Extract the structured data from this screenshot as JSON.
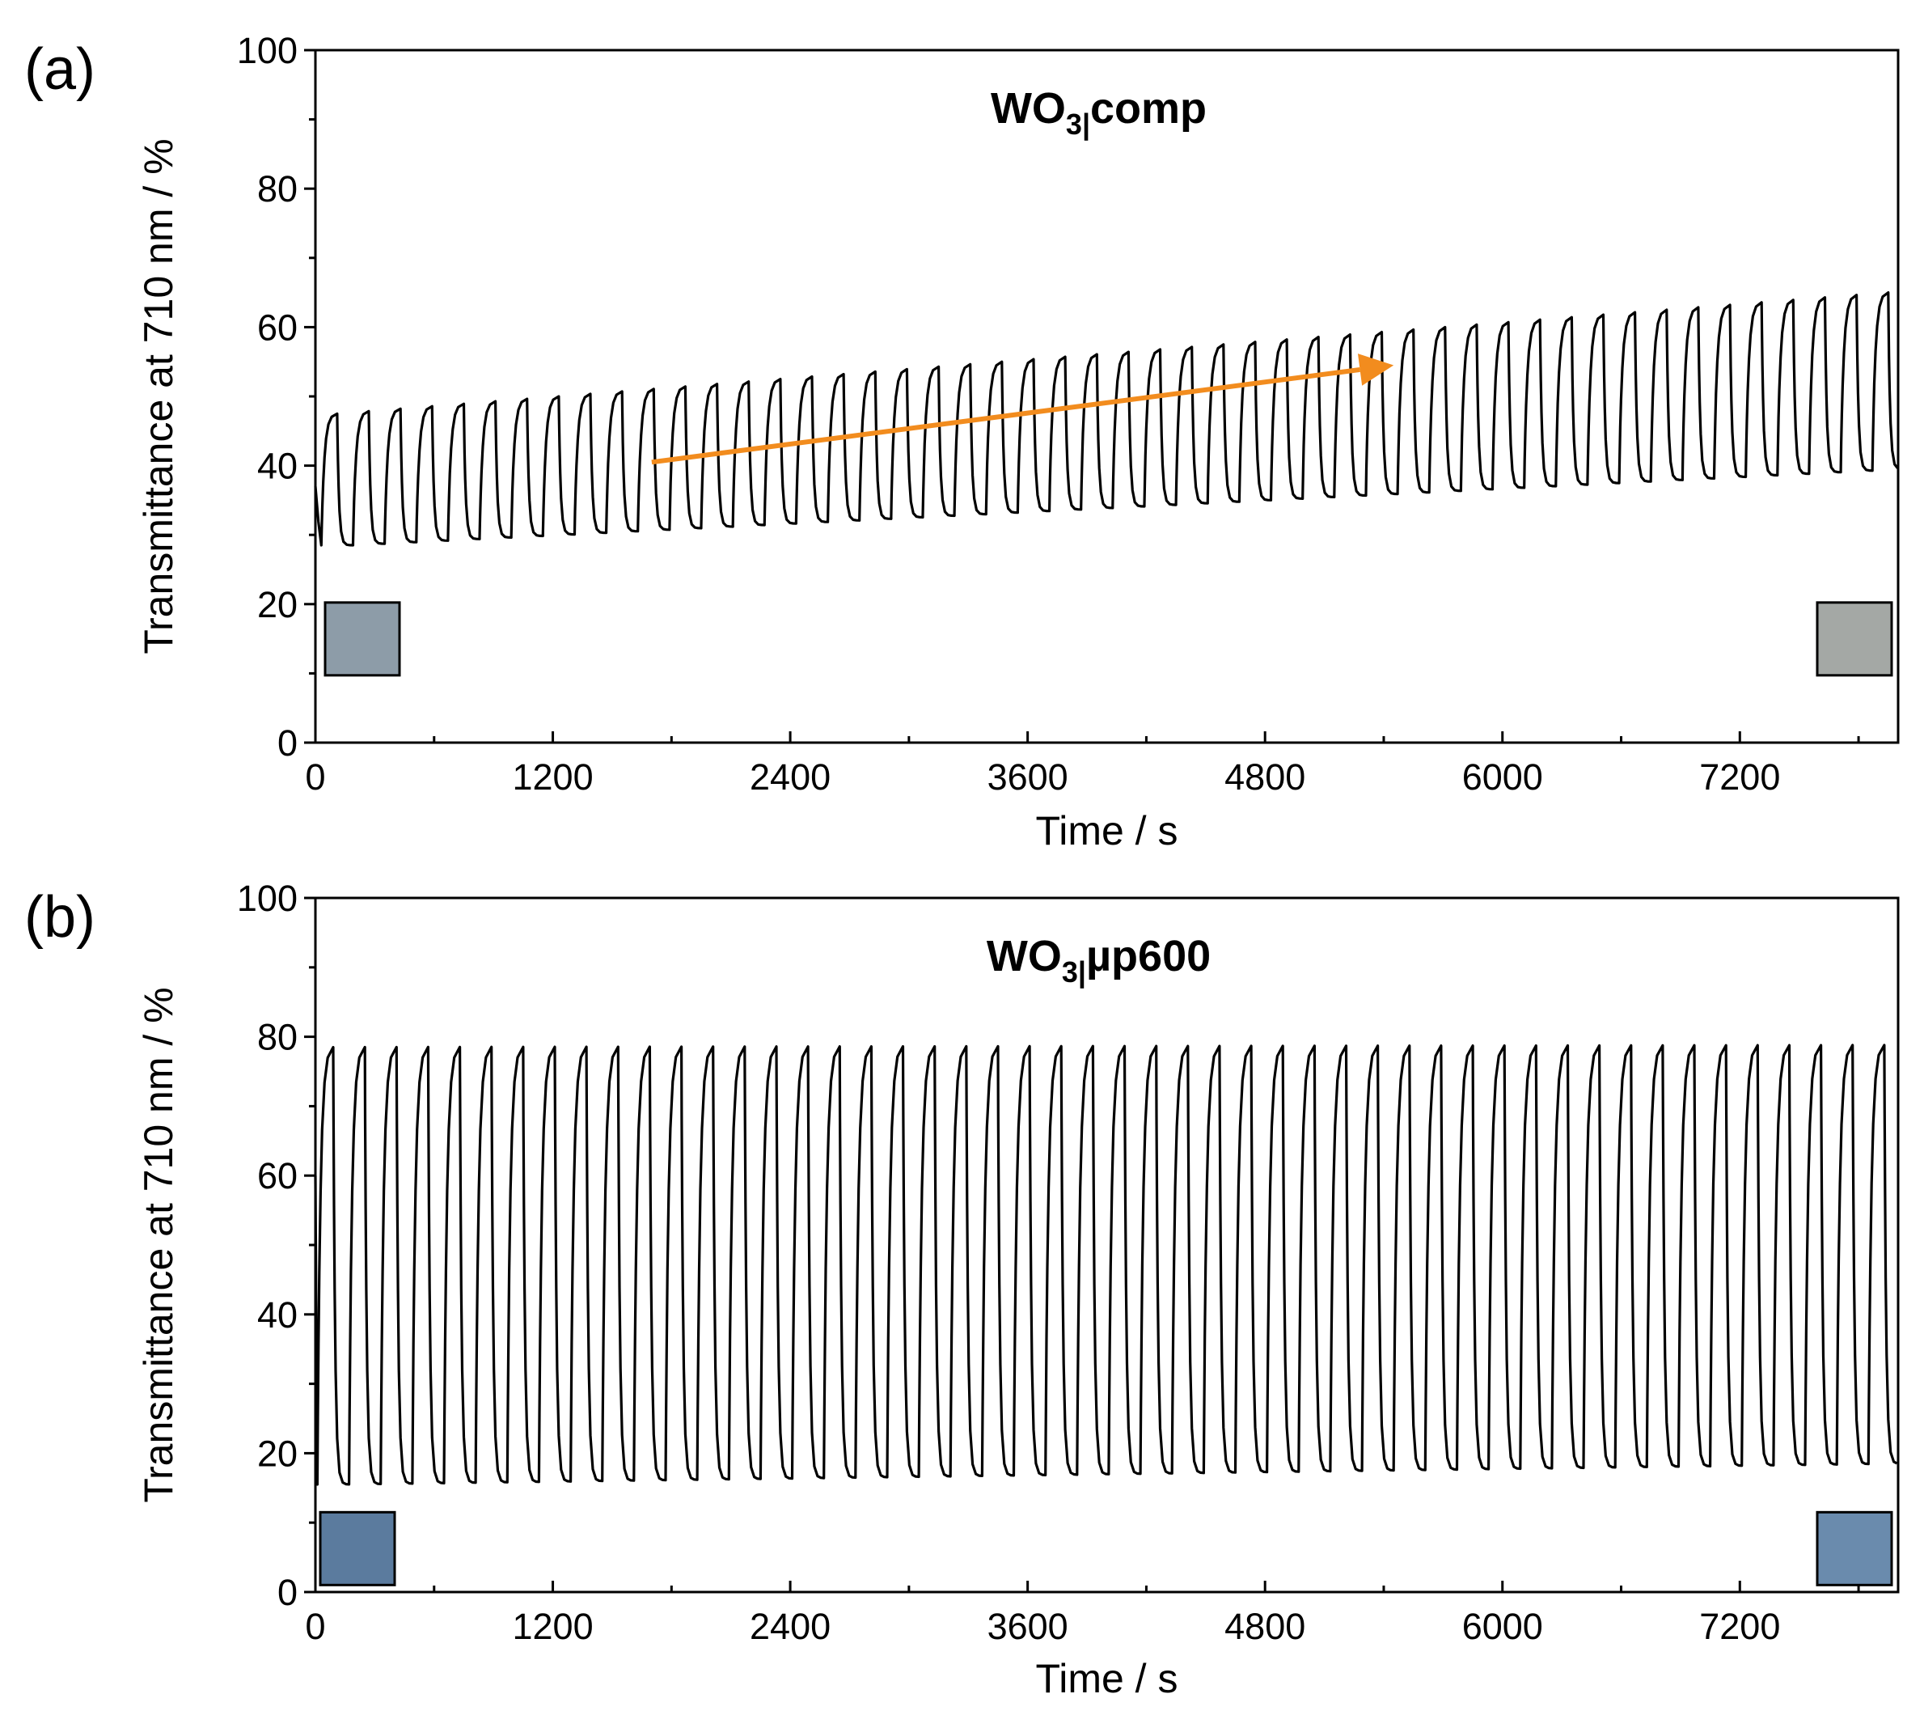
{
  "figure": {
    "panel_labels": [
      "(a)",
      "(b)"
    ]
  },
  "chart_data": [
    {
      "type": "line",
      "panel_label": "(a)",
      "title": "WO3|comp",
      "title_parts": {
        "main": "WO",
        "sub": "3|",
        "rest": "comp"
      },
      "xlabel": "Time / s",
      "ylabel": "Transmittance at 710 nm / %",
      "xlim": [
        0,
        8000
      ],
      "ylim": [
        0,
        100
      ],
      "xticks": [
        "0",
        "1200",
        "2400",
        "3600",
        "4800",
        "6000",
        "7200"
      ],
      "yticks": [
        "0",
        "20",
        "40",
        "60",
        "80",
        "100"
      ],
      "series": [
        {
          "name": "transmittance",
          "color": "#000000",
          "cycle_period_s": 160,
          "cycle_start_s": 30,
          "num_cycles": 50,
          "initial_value": 37,
          "bleached_peak_start": 47.5,
          "bleached_peak_end": 65,
          "colored_min_start": 28.5,
          "colored_min_end": 39.5
        }
      ],
      "annotation_arrow": {
        "color": "#F28C1E",
        "from": [
          1700,
          40.5
        ],
        "to": [
          5450,
          54.5
        ]
      },
      "swatches": [
        {
          "position": "bottom-left",
          "color": "#8D9CA8"
        },
        {
          "position": "bottom-right",
          "color": "#A4A8A5"
        }
      ]
    },
    {
      "type": "line",
      "panel_label": "(b)",
      "title": "WO3|µp600",
      "title_parts": {
        "main": "WO",
        "sub": "3|",
        "rest": "µp600"
      },
      "xlabel": "Time / s",
      "ylabel": "Transmittance at 710 nm / %",
      "xlim": [
        0,
        8000
      ],
      "ylim": [
        0,
        100
      ],
      "xticks": [
        "0",
        "1200",
        "2400",
        "3600",
        "4800",
        "6000",
        "7200"
      ],
      "yticks": [
        "0",
        "20",
        "40",
        "60",
        "80",
        "100"
      ],
      "series": [
        {
          "name": "transmittance",
          "color": "#000000",
          "cycle_period_s": 160,
          "cycle_start_s": 10,
          "num_cycles": 50,
          "initial_value": 60,
          "bleached_peak_start": 78.5,
          "bleached_peak_end": 78.8,
          "colored_min_start": 15.5,
          "colored_min_end": 18.5
        }
      ],
      "swatches": [
        {
          "position": "bottom-left",
          "color": "#5B7B9E"
        },
        {
          "position": "bottom-right",
          "color": "#6A8BAD"
        }
      ]
    }
  ]
}
